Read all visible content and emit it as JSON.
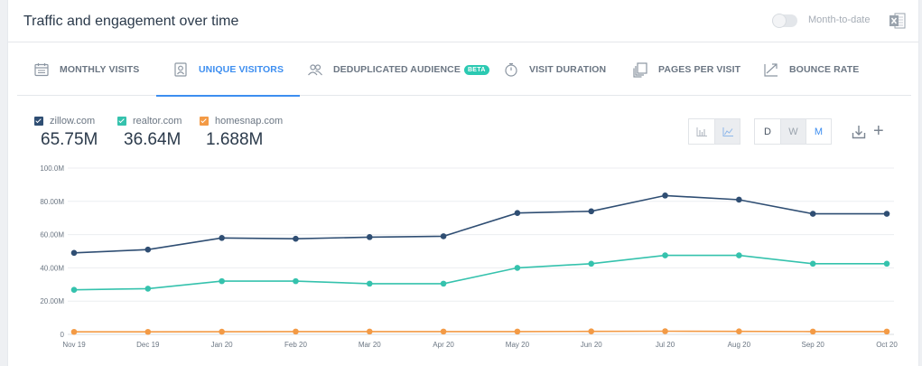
{
  "header": {
    "title": "Traffic and engagement over time",
    "toggle_label": "Month-to-date"
  },
  "tabs": [
    {
      "label": "MONTHLY VISITS",
      "icon": "calendar-icon",
      "active": false
    },
    {
      "label": "UNIQUE VISITORS",
      "icon": "user-badge-icon",
      "active": true
    },
    {
      "label": "DEDUPLICATED AUDIENCE",
      "icon": "users-icon",
      "active": false,
      "badge": "BETA"
    },
    {
      "label": "VISIT DURATION",
      "icon": "stopwatch-icon",
      "active": false
    },
    {
      "label": "PAGES PER VISIT",
      "icon": "pages-icon",
      "active": false
    },
    {
      "label": "BOUNCE RATE",
      "icon": "bounce-arrow-icon",
      "active": false
    }
  ],
  "legend": [
    {
      "name": "zillow.com",
      "value": "65.75M",
      "color": "#2f4e73"
    },
    {
      "name": "realtor.com",
      "value": "36.64M",
      "color": "#35c2ad"
    },
    {
      "name": "homesnap.com",
      "value": "1.688M",
      "color": "#f39a45"
    }
  ],
  "controls": {
    "chart_types": [
      "bar-chart-icon",
      "line-chart-icon"
    ],
    "granularity": [
      "D",
      "W",
      "M"
    ],
    "granularity_selected": "M",
    "granularity_disabled": "W"
  },
  "colors": {
    "accent": "#3d8ef0",
    "zillow": "#2f4e73",
    "realtor": "#35c2ad",
    "homesnap": "#f39a45"
  },
  "chart_data": {
    "type": "line",
    "x": [
      "Nov 19",
      "Dec 19",
      "Jan 20",
      "Feb 20",
      "Mar 20",
      "Apr 20",
      "May 20",
      "Jun 20",
      "Jul 20",
      "Aug 20",
      "Sep 20",
      "Oct 20"
    ],
    "series": [
      {
        "name": "zillow.com",
        "values": [
          49.0,
          51.0,
          58.0,
          57.5,
          58.5,
          59.0,
          73.0,
          74.0,
          83.5,
          81.0,
          72.5,
          72.5
        ]
      },
      {
        "name": "realtor.com",
        "values": [
          26.8,
          27.5,
          32.0,
          32.0,
          30.5,
          30.5,
          40.0,
          42.5,
          47.5,
          47.5,
          42.5,
          42.5
        ]
      },
      {
        "name": "homesnap.com",
        "values": [
          1.5,
          1.5,
          1.6,
          1.7,
          1.7,
          1.7,
          1.7,
          1.8,
          1.9,
          1.8,
          1.7,
          1.7
        ]
      }
    ],
    "yticks": [
      "0",
      "20.00M",
      "40.00M",
      "60.00M",
      "80.00M",
      "100.0M"
    ],
    "ylim": [
      0,
      100
    ],
    "grid": true,
    "legend_position": "top-left"
  }
}
